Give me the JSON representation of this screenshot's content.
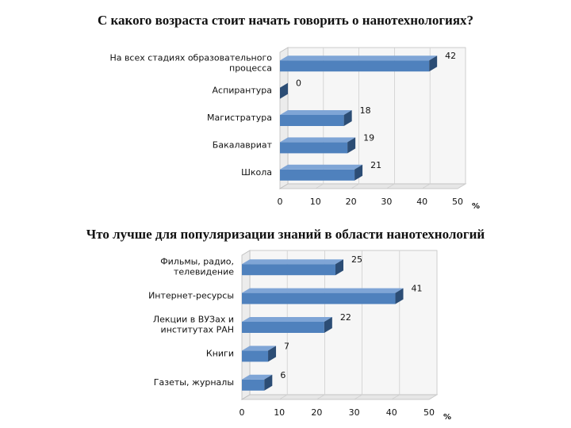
{
  "colors": {
    "bar_front": "#4F81BD",
    "bar_top": "#7FA5D6",
    "bar_side": "#2C4D75",
    "wall": "#ececec",
    "grid": "#cfcfcf"
  },
  "chart_data": [
    {
      "type": "bar",
      "orientation": "horizontal",
      "style": "3d",
      "title": "С какого возраста стоит начать говорить о нанотехнологиях?",
      "categories": [
        [
          "На всех стадиях образовательного",
          "процесса"
        ],
        [
          "Аспирантура"
        ],
        [
          "Магистратура"
        ],
        [
          "Бакалавриат"
        ],
        [
          "Школа"
        ]
      ],
      "values": [
        42,
        0,
        18,
        19,
        21
      ],
      "data_labels": [
        "42",
        "0",
        "18",
        "19",
        "21"
      ],
      "xlim": [
        0,
        50
      ],
      "xticks": [
        "0",
        "10",
        "20",
        "30",
        "40",
        "50"
      ],
      "unit": "%",
      "grid": true
    },
    {
      "type": "bar",
      "orientation": "horizontal",
      "style": "3d",
      "title": "Что лучше для популяризации знаний в области нанотехнологий",
      "categories": [
        [
          "Фильмы, радио,",
          "телевидение"
        ],
        [
          "Интернет-ресурсы"
        ],
        [
          "Лекции в ВУЗах и",
          "институтах РАН"
        ],
        [
          "Книги"
        ],
        [
          "Газеты, журналы"
        ]
      ],
      "values": [
        25,
        41,
        22,
        7,
        6
      ],
      "data_labels": [
        "25",
        "41",
        "22",
        "7",
        "6"
      ],
      "xlim": [
        0,
        50
      ],
      "xticks": [
        "0",
        "10",
        "20",
        "30",
        "40",
        "50"
      ],
      "unit": "%",
      "grid": true
    }
  ]
}
